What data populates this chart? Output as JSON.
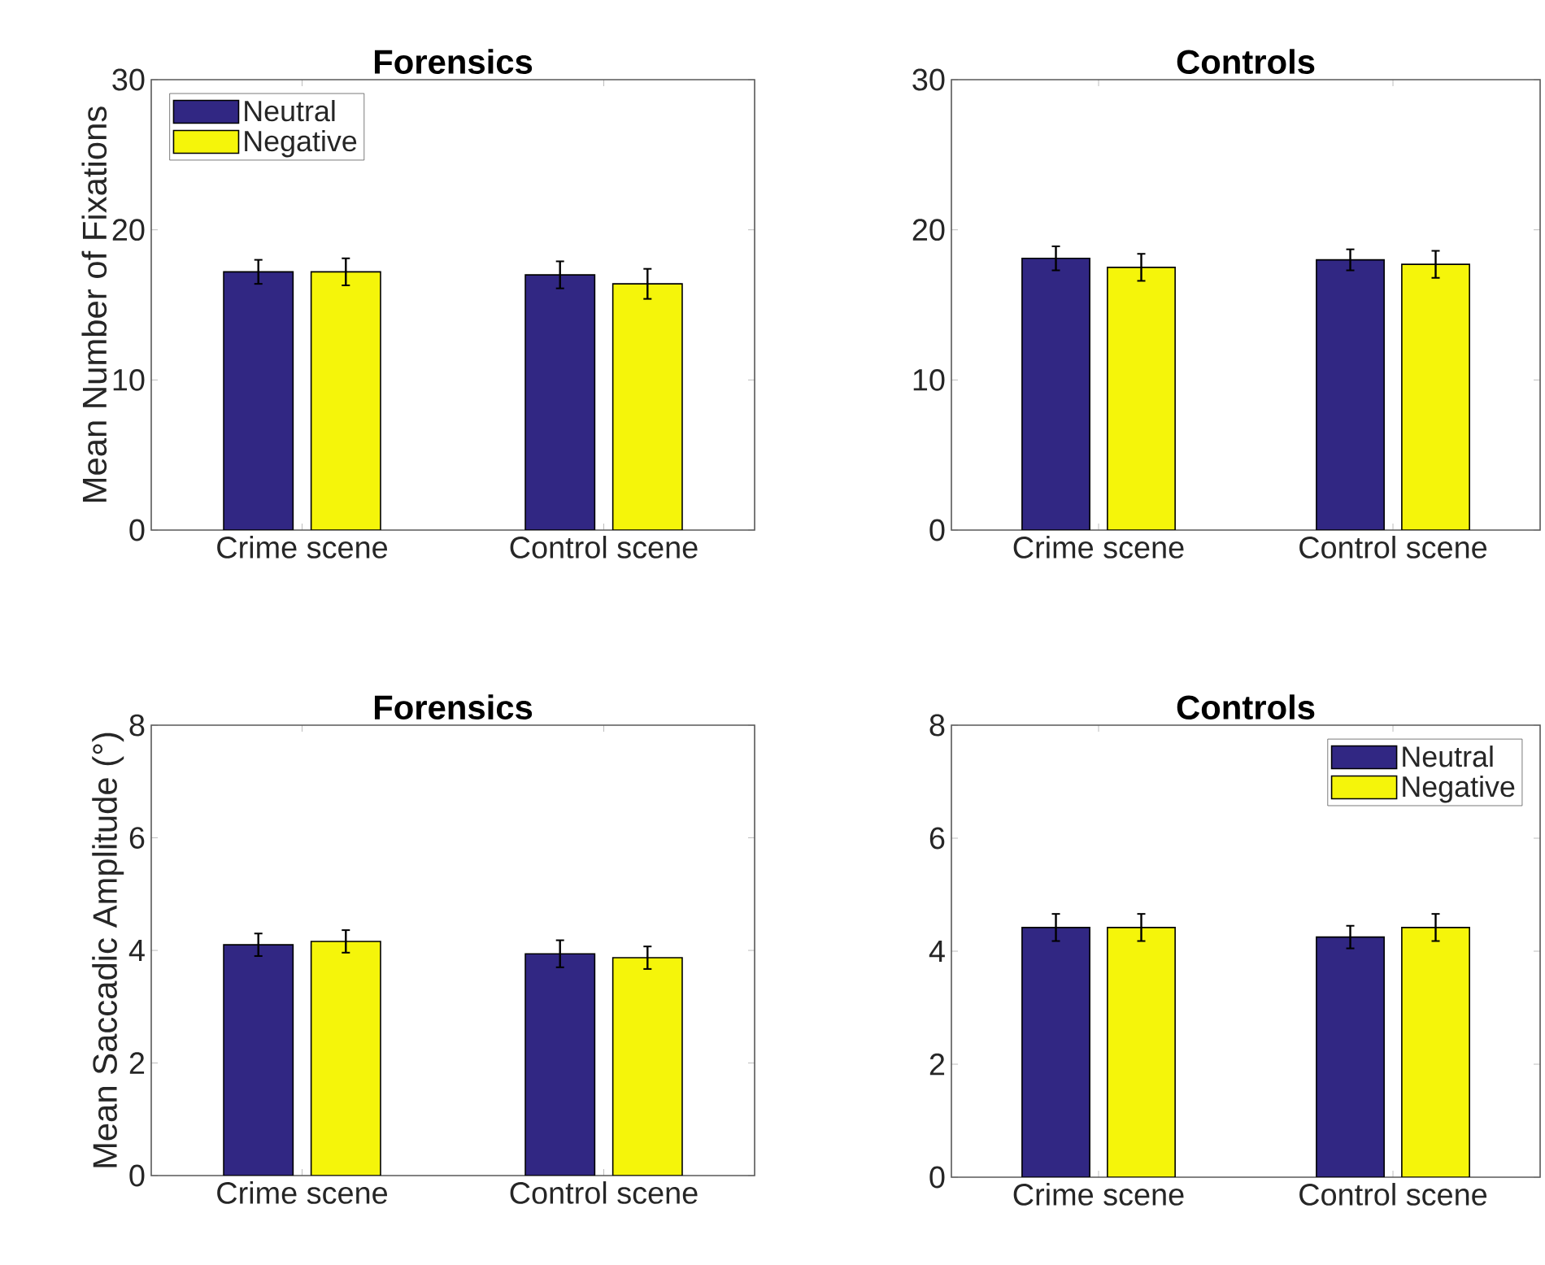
{
  "chart_data": [
    {
      "type": "bar",
      "title": "Forensics",
      "ylabel": "Mean Number of Fixations",
      "categories": [
        "Crime scene",
        "Control scene"
      ],
      "ylim": [
        0,
        30
      ],
      "yticks": [
        0,
        10,
        20,
        30
      ],
      "legend": "top left",
      "series": [
        {
          "name": "Neutral",
          "color": "#312783",
          "values": [
            17.2,
            17.0
          ],
          "errors": [
            0.8,
            0.9
          ]
        },
        {
          "name": "Negative",
          "color": "#f5f50a",
          "values": [
            17.2,
            16.4
          ],
          "errors": [
            0.9,
            1.0
          ]
        }
      ]
    },
    {
      "type": "bar",
      "title": "Controls",
      "categories": [
        "Crime scene",
        "Control scene"
      ],
      "ylim": [
        0,
        30
      ],
      "yticks": [
        0,
        10,
        20,
        30
      ],
      "series": [
        {
          "color": "#312783",
          "values": [
            18.1,
            18.0
          ],
          "errors": [
            0.8,
            0.7
          ]
        },
        {
          "color": "#f5f50a",
          "values": [
            17.5,
            17.7
          ],
          "errors": [
            0.9,
            0.9
          ]
        }
      ]
    },
    {
      "type": "bar",
      "title": "Forensics",
      "ylabel": "Mean Saccadic Amplitude (°)",
      "categories": [
        "Crime scene",
        "Control scene"
      ],
      "ylim": [
        0,
        8
      ],
      "yticks": [
        0,
        2,
        4,
        6,
        8
      ],
      "series": [
        {
          "color": "#312783",
          "values": [
            4.1,
            3.94
          ],
          "errors": [
            0.2,
            0.24
          ]
        },
        {
          "color": "#f5f50a",
          "values": [
            4.16,
            3.87
          ],
          "errors": [
            0.2,
            0.2
          ]
        }
      ]
    },
    {
      "type": "bar",
      "title": "Controls",
      "categories": [
        "Crime scene",
        "Control scene"
      ],
      "ylim": [
        0,
        8
      ],
      "yticks": [
        0,
        2,
        4,
        6,
        8
      ],
      "legend": "top right",
      "series": [
        {
          "name": "Neutral",
          "color": "#312783",
          "values": [
            4.42,
            4.25
          ],
          "errors": [
            0.24,
            0.2
          ]
        },
        {
          "name": "Negative",
          "color": "#f5f50a",
          "values": [
            4.42,
            4.42
          ],
          "errors": [
            0.24,
            0.24
          ]
        }
      ]
    }
  ]
}
